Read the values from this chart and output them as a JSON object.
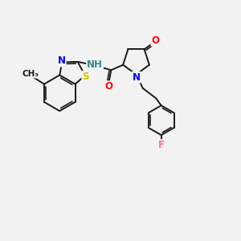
{
  "bg_color": "#f2f2f2",
  "bond_color": "#1a1a1a",
  "bond_width": 1.4,
  "atom_colors": {
    "S": "#cccc00",
    "N": "#0000ff",
    "O": "#ff0000",
    "F": "#ff69b4",
    "H": "#2e8b8b",
    "C": "#1a1a1a"
  },
  "font_size_atom": 8.5,
  "font_size_methyl": 7.5
}
